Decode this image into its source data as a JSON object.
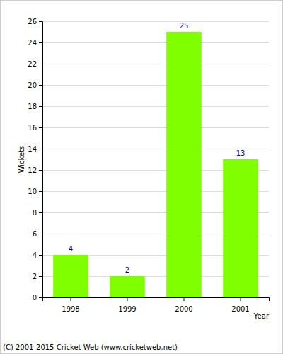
{
  "chart_data": {
    "type": "bar",
    "categories": [
      "1998",
      "1999",
      "2000",
      "2001"
    ],
    "values": [
      4,
      2,
      25,
      13
    ],
    "color": "#80ff00",
    "xlabel": "Year",
    "ylabel": "Wickets",
    "ylim": [
      0,
      26
    ],
    "yticks": [
      0,
      2,
      4,
      6,
      8,
      10,
      12,
      14,
      16,
      18,
      20,
      22,
      24,
      26
    ],
    "grid": true,
    "data_labels": true,
    "annotations": [
      "(C) 2001-2015 Cricket Web (www.cricketweb.net)"
    ]
  }
}
